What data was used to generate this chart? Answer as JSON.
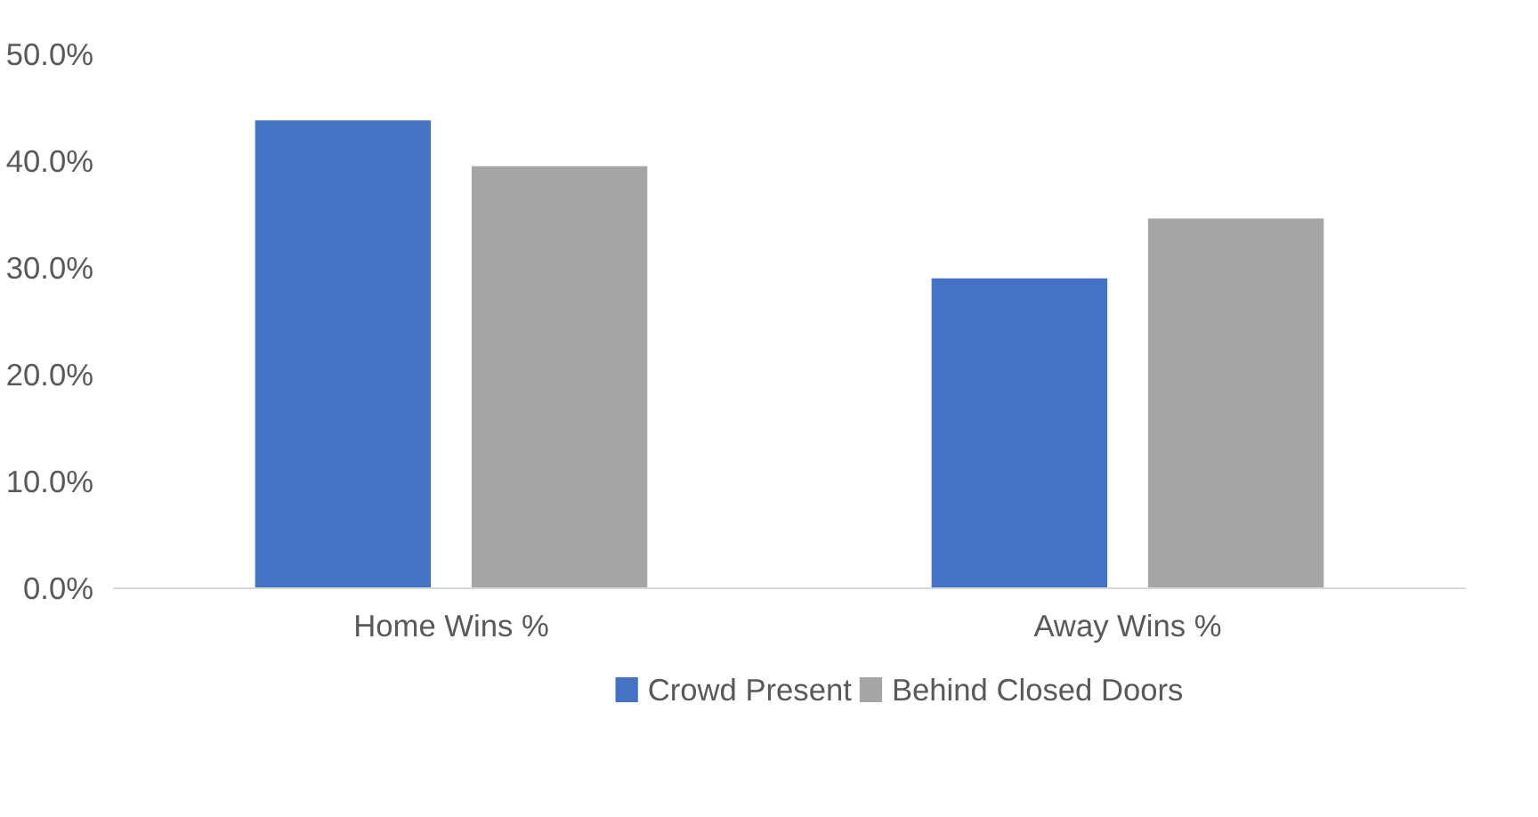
{
  "chart_data": {
    "type": "bar",
    "categories": [
      "Home Wins %",
      "Away Wins %"
    ],
    "series": [
      {
        "name": "Crowd Present",
        "color": "#4472c4",
        "values": [
          43.9,
          29.1
        ]
      },
      {
        "name": "Behind Closed Doors",
        "color": "#a5a5a5",
        "values": [
          39.6,
          34.7
        ]
      }
    ],
    "ylim": [
      0,
      50
    ],
    "yticks": [
      {
        "value": 0,
        "label": "0.0%"
      },
      {
        "value": 10,
        "label": "10.0%"
      },
      {
        "value": 20,
        "label": "20.0%"
      },
      {
        "value": 30,
        "label": "30.0%"
      },
      {
        "value": 40,
        "label": "40.0%"
      },
      {
        "value": 50,
        "label": "50.0%"
      }
    ],
    "grid": false,
    "legend": "bottom"
  }
}
